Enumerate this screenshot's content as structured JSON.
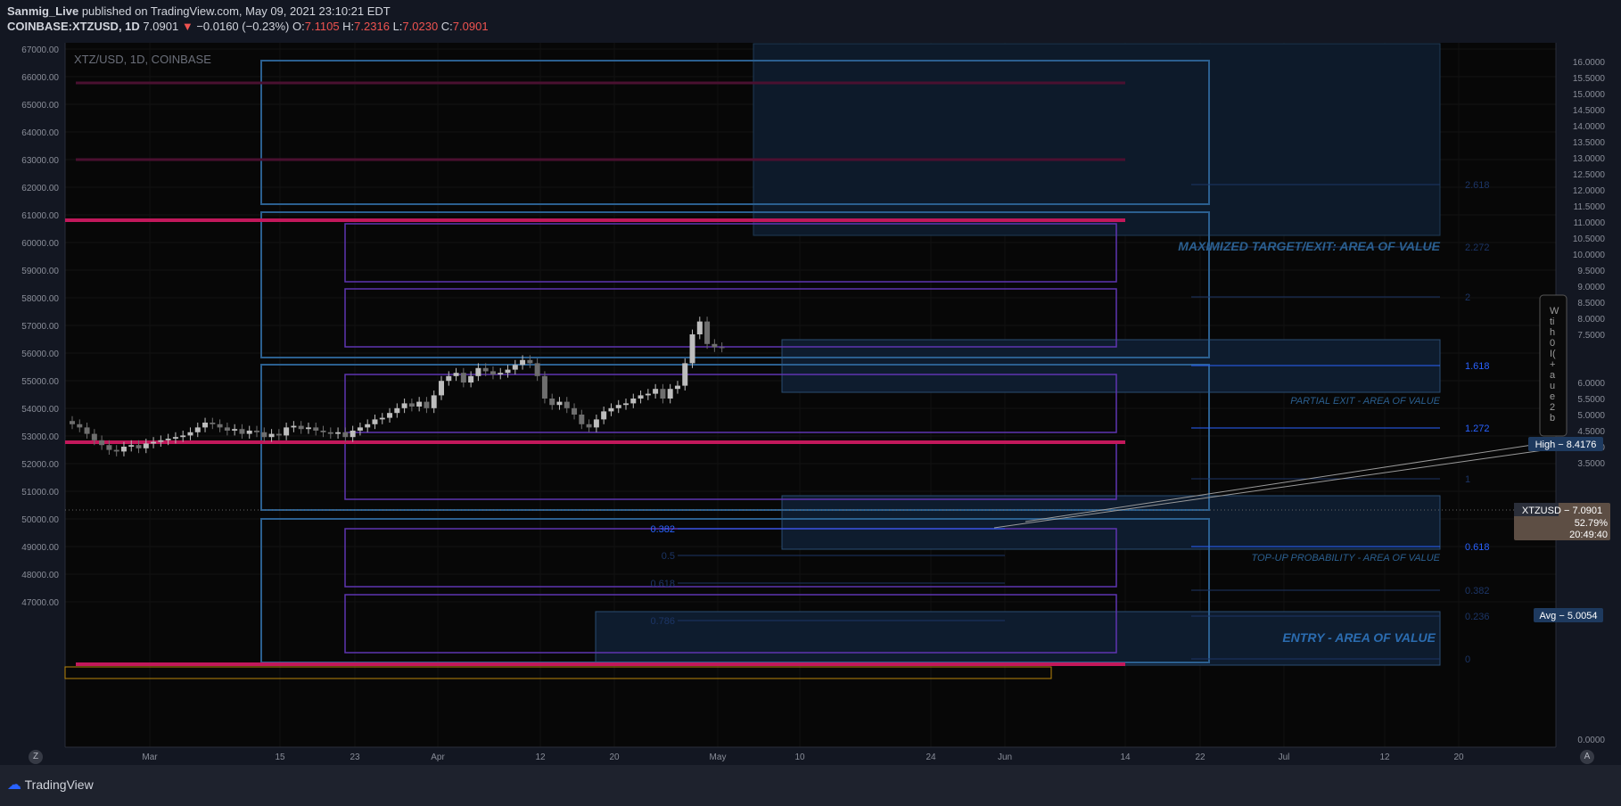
{
  "header": {
    "publisher": "Sanmig_Live",
    "published_text": "published on TradingView.com, May 09, 2021 23:10:21 EDT",
    "symbol": "COINBASE:XTZUSD, 1D",
    "last": "7.0901",
    "arrow": "▼",
    "change": "−0.0160 (−0.23%)",
    "open_label": "O:",
    "open": "7.1105",
    "high_label": "H:",
    "high": "7.2316",
    "low_label": "L:",
    "low": "7.0230",
    "close_label": "C:",
    "close": "7.0901"
  },
  "chart": {
    "watermark": "XTZ/USD, 1D, COINBASE",
    "left_axis_ticks": [
      "67000.00",
      "66000.00",
      "65000.00",
      "64000.00",
      "63000.00",
      "62000.00",
      "61000.00",
      "60000.00",
      "59000.00",
      "58000.00",
      "57000.00",
      "56000.00",
      "55000.00",
      "54000.00",
      "53000.00",
      "52000.00",
      "51000.00",
      "50000.00",
      "49000.00",
      "48000.00",
      "47000.00"
    ],
    "right_axis_ticks": [
      "16.0000",
      "15.5000",
      "15.0000",
      "14.5000",
      "14.0000",
      "13.5000",
      "13.0000",
      "12.5000",
      "12.0000",
      "11.5000",
      "11.0000",
      "10.5000",
      "10.0000",
      "9.5000",
      "9.0000",
      "8.5000",
      "8.0000",
      "7.5000",
      "6.0000",
      "5.5000",
      "5.0000",
      "4.5000",
      "4.0000",
      "3.5000",
      "0.0000"
    ],
    "time_labels": [
      "Mar",
      "15",
      "23",
      "Apr",
      "12",
      "20",
      "May",
      "10",
      "24",
      "Jun",
      "14",
      "22",
      "Jul",
      "12",
      "20"
    ],
    "fib_left": [
      "0.382",
      "0.5",
      "0.618",
      "0.786"
    ],
    "fib_right": [
      "2.618",
      "2.272",
      "2",
      "1.618",
      "1.272",
      "1",
      "0.618",
      "0.382",
      "0.236",
      "0"
    ],
    "zones": {
      "target": "MAXIMIZED TARGET/EXIT: AREA OF VALUE",
      "partial": "PARTIAL EXIT - AREA OF VALUE",
      "topup": "TOP-UP PROBABILITY - AREA OF VALUE",
      "entry": "ENTRY - AREA OF VALUE"
    },
    "labels": {
      "high": "High − 8.4176",
      "price_name": "XTZUSD − 7.0901",
      "price_pct": "52.79%",
      "price_time": "20:49:40",
      "avg": "Avg − 5.0054"
    },
    "note_chars": [
      "W",
      "ti",
      "h",
      "0",
      "I(",
      "+",
      "a",
      "u",
      "e",
      "2",
      "b"
    ],
    "colors": {
      "bull": "#bdbdbd",
      "bear": "#6e6e6e",
      "magenta": "#c2185b",
      "zone": "#2b6cb0",
      "purple": "#5e35b1",
      "fib": "#2962ff"
    }
  },
  "chart_data": {
    "type": "candlestick",
    "title": "XTZ/USD, 1D, COINBASE",
    "yaxis_right_range": [
      0,
      16.2
    ],
    "candles_ohlc_sample": [
      {
        "x": "Mar",
        "o": 4.1,
        "h": 4.35,
        "l": 3.75,
        "c": 3.9
      },
      {
        "x": "23",
        "o": 4.2,
        "h": 4.45,
        "l": 4.05,
        "c": 4.3
      },
      {
        "x": "Apr",
        "o": 4.9,
        "h": 5.3,
        "l": 4.75,
        "c": 5.1
      },
      {
        "x": "12",
        "o": 6.0,
        "h": 6.75,
        "l": 5.9,
        "c": 6.4
      },
      {
        "x": "20",
        "o": 5.5,
        "h": 5.7,
        "l": 4.95,
        "c": 5.0
      },
      {
        "x": "May",
        "o": 5.45,
        "h": 5.75,
        "l": 5.3,
        "c": 5.55
      },
      {
        "x": "10",
        "o": 7.11,
        "h": 7.23,
        "l": 7.02,
        "c": 7.09
      }
    ],
    "levels": {
      "high": 8.4176,
      "last": 7.0901,
      "avg": 5.0054
    }
  },
  "footer": {
    "brand": "TradingView",
    "z_button": "Z",
    "a_button": "A"
  }
}
